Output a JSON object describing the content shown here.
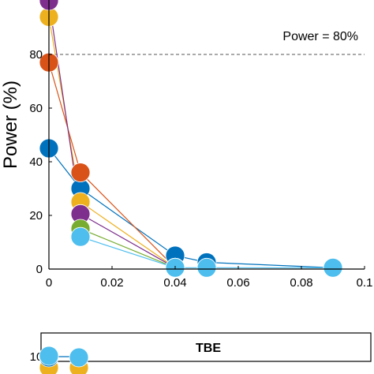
{
  "chart_data": [
    {
      "type": "line",
      "ylabel": "Power (%)",
      "xlim": [
        0,
        0.1
      ],
      "ylim": [
        0,
        100
      ],
      "x_ticks": [
        "0",
        "0.02",
        "0.04",
        "0.06",
        "0.08",
        "0.1"
      ],
      "x_tick_values": [
        0,
        0.02,
        0.04,
        0.06,
        0.08,
        0.1
      ],
      "y_ticks": [
        "0",
        "20",
        "40",
        "60",
        "80"
      ],
      "y_tick_values": [
        0,
        20,
        40,
        60,
        80
      ],
      "reference_line": {
        "y": 80,
        "label": "Power = 80%"
      },
      "series": [
        {
          "color": "#0072BD",
          "points": [
            [
              0,
              45
            ],
            [
              0.01,
              30
            ],
            [
              0.04,
              5
            ],
            [
              0.05,
              2.5
            ],
            [
              0.09,
              0.5
            ]
          ]
        },
        {
          "color": "#D95319",
          "points": [
            [
              0,
              77
            ],
            [
              0.01,
              36
            ],
            [
              0.04,
              0.5
            ]
          ]
        },
        {
          "color": "#EDB120",
          "points": [
            [
              0,
              94
            ],
            [
              0.01,
              25
            ],
            [
              0.04,
              0.5
            ]
          ]
        },
        {
          "color": "#7E2F8E",
          "points": [
            [
              0,
              100
            ],
            [
              0.01,
              20.5
            ],
            [
              0.04,
              0.5
            ]
          ]
        },
        {
          "color": "#77AC30",
          "points": [
            [
              0.01,
              15
            ],
            [
              0.04,
              0.5
            ]
          ]
        },
        {
          "color": "#4DBEEE",
          "points": [
            [
              0.01,
              12
            ],
            [
              0.04,
              0.5
            ],
            [
              0.05,
              0.5
            ],
            [
              0.09,
              0.5
            ]
          ]
        }
      ]
    },
    {
      "type": "line",
      "title": "TBE",
      "y_ticks": [
        "10"
      ],
      "series_colors": [
        "#0072BD",
        "#4DBEEE",
        "#EDB120"
      ]
    }
  ]
}
